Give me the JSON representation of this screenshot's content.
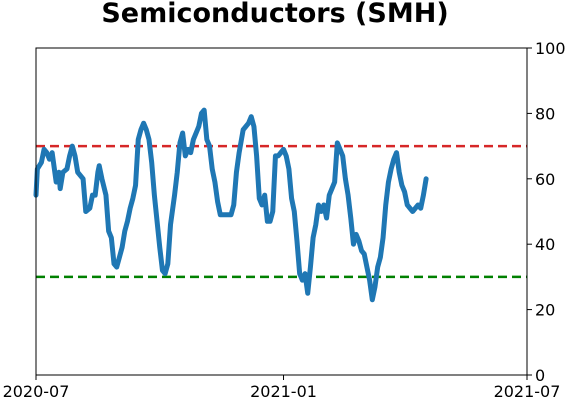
{
  "chart_data": {
    "type": "line",
    "title": "Semiconductors (SMH)",
    "xlabel": "",
    "ylabel": "",
    "x_range": [
      "2020-07-01",
      "2021-07-01"
    ],
    "x_ticks": [
      {
        "date": "2020-07-01",
        "label": "2020-07"
      },
      {
        "date": "2021-01-01",
        "label": "2021-01"
      },
      {
        "date": "2021-07-01",
        "label": "2021-07"
      }
    ],
    "ylim": [
      0,
      100
    ],
    "y_ticks": [
      0,
      20,
      40,
      60,
      80,
      100
    ],
    "y_axis_side": "right",
    "grid": false,
    "legend": "none",
    "reference_lines": [
      {
        "y": 70,
        "color": "#d62728",
        "style": "dashed"
      },
      {
        "y": 30,
        "color": "#008000",
        "style": "dashed"
      }
    ],
    "series": [
      {
        "color": "#1f77b4",
        "points": [
          [
            "2020-07-01",
            55
          ],
          [
            "2020-07-02",
            63
          ],
          [
            "2020-07-05",
            65
          ],
          [
            "2020-07-07",
            69
          ],
          [
            "2020-07-09",
            68
          ],
          [
            "2020-07-11",
            66
          ],
          [
            "2020-07-13",
            68
          ],
          [
            "2020-07-15",
            62
          ],
          [
            "2020-07-16",
            59
          ],
          [
            "2020-07-18",
            62
          ],
          [
            "2020-07-19",
            57
          ],
          [
            "2020-07-21",
            62
          ],
          [
            "2020-07-24",
            63
          ],
          [
            "2020-07-26",
            67
          ],
          [
            "2020-07-28",
            70
          ],
          [
            "2020-07-30",
            67
          ],
          [
            "2020-08-01",
            62
          ],
          [
            "2020-08-05",
            60
          ],
          [
            "2020-08-07",
            50
          ],
          [
            "2020-08-10",
            51
          ],
          [
            "2020-08-12",
            55
          ],
          [
            "2020-08-14",
            55
          ],
          [
            "2020-08-16",
            62
          ],
          [
            "2020-08-17",
            64
          ],
          [
            "2020-08-19",
            60
          ],
          [
            "2020-08-22",
            55
          ],
          [
            "2020-08-24",
            44
          ],
          [
            "2020-08-26",
            42
          ],
          [
            "2020-08-28",
            34
          ],
          [
            "2020-08-30",
            33
          ],
          [
            "2020-09-01",
            36
          ],
          [
            "2020-09-03",
            39
          ],
          [
            "2020-09-05",
            44
          ],
          [
            "2020-09-07",
            47
          ],
          [
            "2020-09-09",
            51
          ],
          [
            "2020-09-11",
            54
          ],
          [
            "2020-09-13",
            58
          ],
          [
            "2020-09-15",
            72
          ],
          [
            "2020-09-17",
            75
          ],
          [
            "2020-09-19",
            77
          ],
          [
            "2020-09-21",
            75
          ],
          [
            "2020-09-23",
            72
          ],
          [
            "2020-09-25",
            65
          ],
          [
            "2020-09-27",
            55
          ],
          [
            "2020-09-29",
            47
          ],
          [
            "2020-10-01",
            39
          ],
          [
            "2020-10-03",
            32
          ],
          [
            "2020-10-05",
            31
          ],
          [
            "2020-10-07",
            34
          ],
          [
            "2020-10-09",
            46
          ],
          [
            "2020-10-12",
            55
          ],
          [
            "2020-10-14",
            62
          ],
          [
            "2020-10-16",
            71
          ],
          [
            "2020-10-18",
            74
          ],
          [
            "2020-10-20",
            67
          ],
          [
            "2020-10-22",
            69
          ],
          [
            "2020-10-24",
            68
          ],
          [
            "2020-10-26",
            72
          ],
          [
            "2020-10-28",
            74
          ],
          [
            "2020-10-30",
            76
          ],
          [
            "2020-11-01",
            80
          ],
          [
            "2020-11-03",
            81
          ],
          [
            "2020-11-05",
            72
          ],
          [
            "2020-11-07",
            70
          ],
          [
            "2020-11-09",
            63
          ],
          [
            "2020-11-11",
            59
          ],
          [
            "2020-11-13",
            53
          ],
          [
            "2020-11-15",
            49
          ],
          [
            "2020-11-17",
            49
          ],
          [
            "2020-11-19",
            49
          ],
          [
            "2020-11-21",
            49
          ],
          [
            "2020-11-23",
            49
          ],
          [
            "2020-11-25",
            52
          ],
          [
            "2020-11-27",
            62
          ],
          [
            "2020-11-29",
            68
          ],
          [
            "2020-12-02",
            75
          ],
          [
            "2020-12-04",
            76
          ],
          [
            "2020-12-06",
            77
          ],
          [
            "2020-12-08",
            79
          ],
          [
            "2020-12-10",
            76
          ],
          [
            "2020-12-12",
            67
          ],
          [
            "2020-12-14",
            54
          ],
          [
            "2020-12-16",
            52
          ],
          [
            "2020-12-18",
            55
          ],
          [
            "2020-12-20",
            47
          ],
          [
            "2020-12-22",
            47
          ],
          [
            "2020-12-24",
            50
          ],
          [
            "2020-12-26",
            67
          ],
          [
            "2020-12-28",
            67
          ],
          [
            "2020-12-30",
            68
          ],
          [
            "2021-01-01",
            69
          ],
          [
            "2021-01-03",
            67
          ],
          [
            "2021-01-05",
            63
          ],
          [
            "2021-01-07",
            54
          ],
          [
            "2021-01-09",
            50
          ],
          [
            "2021-01-11",
            41
          ],
          [
            "2021-01-13",
            31
          ],
          [
            "2021-01-15",
            29
          ],
          [
            "2021-01-17",
            31
          ],
          [
            "2021-01-19",
            25
          ],
          [
            "2021-01-21",
            33
          ],
          [
            "2021-01-23",
            42
          ],
          [
            "2021-01-25",
            46
          ],
          [
            "2021-01-27",
            52
          ],
          [
            "2021-01-29",
            50
          ],
          [
            "2021-01-31",
            52
          ],
          [
            "2021-02-02",
            48
          ],
          [
            "2021-02-04",
            55
          ],
          [
            "2021-02-06",
            57
          ],
          [
            "2021-02-08",
            59
          ],
          [
            "2021-02-10",
            71
          ],
          [
            "2021-02-12",
            69
          ],
          [
            "2021-02-14",
            67
          ],
          [
            "2021-02-16",
            60
          ],
          [
            "2021-02-18",
            55
          ],
          [
            "2021-02-20",
            48
          ],
          [
            "2021-02-22",
            40
          ],
          [
            "2021-02-24",
            43
          ],
          [
            "2021-02-26",
            41
          ],
          [
            "2021-02-28",
            38
          ],
          [
            "2021-03-02",
            37
          ],
          [
            "2021-03-04",
            33
          ],
          [
            "2021-03-06",
            29
          ],
          [
            "2021-03-08",
            23
          ],
          [
            "2021-03-10",
            27
          ],
          [
            "2021-03-12",
            33
          ],
          [
            "2021-03-14",
            36
          ],
          [
            "2021-03-16",
            42
          ],
          [
            "2021-03-18",
            52
          ],
          [
            "2021-03-20",
            59
          ],
          [
            "2021-03-22",
            63
          ],
          [
            "2021-03-24",
            66
          ],
          [
            "2021-03-26",
            68
          ],
          [
            "2021-03-28",
            62
          ],
          [
            "2021-03-30",
            58
          ],
          [
            "2021-04-01",
            56
          ],
          [
            "2021-04-03",
            52
          ],
          [
            "2021-04-05",
            51
          ],
          [
            "2021-04-07",
            50
          ],
          [
            "2021-04-09",
            51
          ],
          [
            "2021-04-11",
            52
          ],
          [
            "2021-04-13",
            51
          ],
          [
            "2021-04-15",
            55
          ],
          [
            "2021-04-17",
            60
          ]
        ]
      }
    ]
  }
}
